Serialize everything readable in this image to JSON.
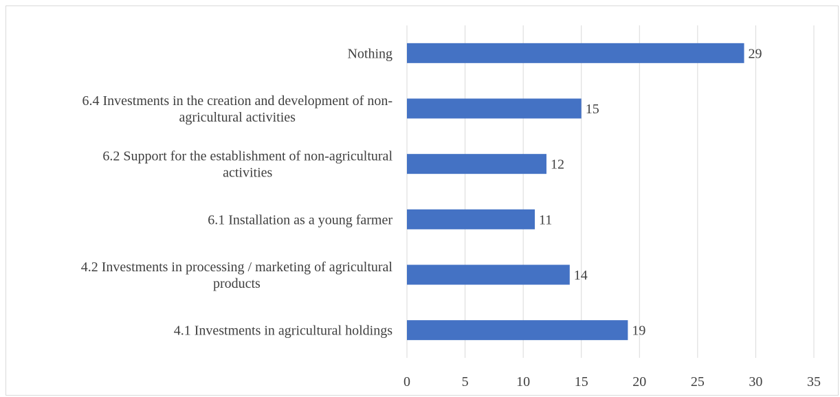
{
  "chart_data": {
    "type": "bar",
    "orientation": "horizontal",
    "title": "",
    "xlabel": "",
    "ylabel": "",
    "categories": [
      [
        "Nothing"
      ],
      [
        "6.4 Investments in the creation and development of non-",
        "agricultural activities"
      ],
      [
        "6.2 Support for the establishment of non-agricultural",
        "activities"
      ],
      [
        "6.1 Installation as a young farmer"
      ],
      [
        "4.2 Investments in processing / marketing of agricultural",
        "products"
      ],
      [
        "4.1 Investments in agricultural holdings"
      ]
    ],
    "values": [
      29,
      15,
      12,
      11,
      14,
      19
    ],
    "data_labels": [
      "29",
      "15",
      "12",
      "11",
      "14",
      "19"
    ],
    "xlim": [
      0,
      35
    ],
    "xticks": [
      "0",
      "5",
      "10",
      "15",
      "20",
      "25",
      "30",
      "35"
    ],
    "grid": "vertical",
    "legend": "none",
    "colors": {
      "bar": "#4472C4",
      "grid": "#d9d9d9",
      "text": "#404040"
    }
  }
}
